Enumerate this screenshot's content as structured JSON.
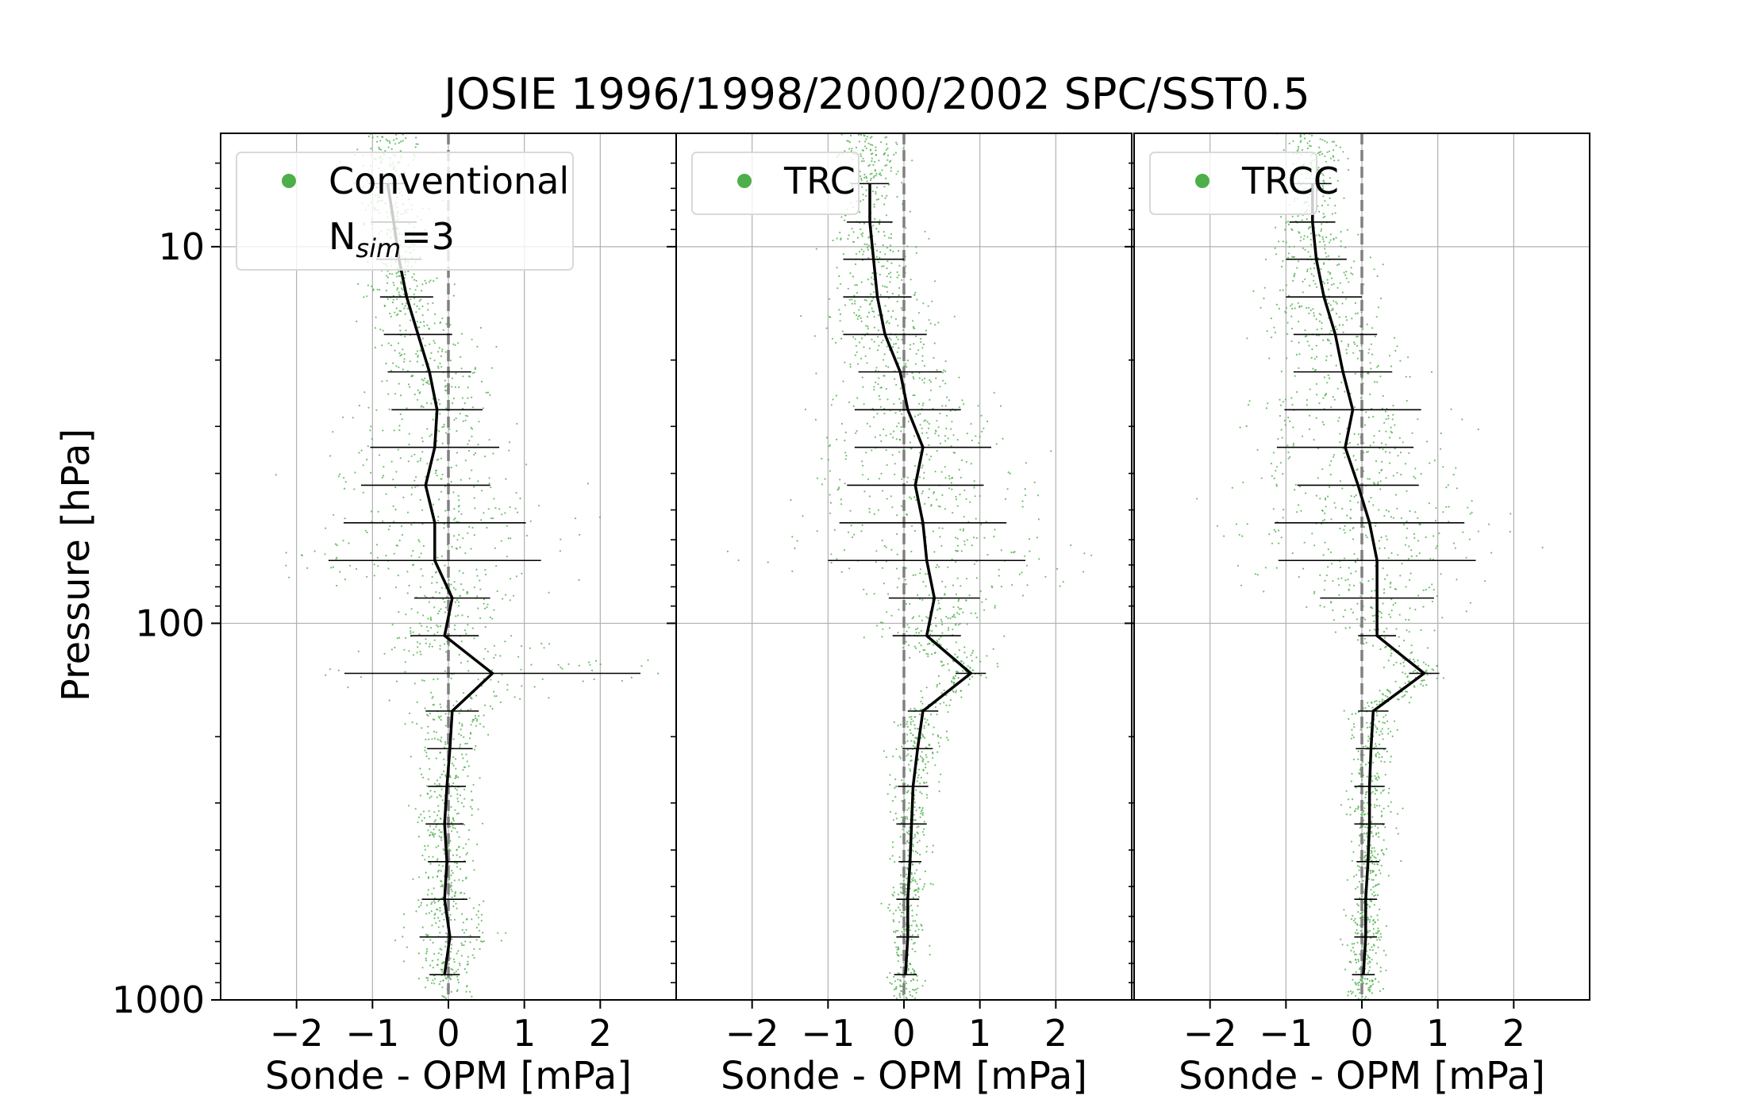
{
  "colors": {
    "scatter": "#4daf4a",
    "mean_line": "#000000",
    "zero_line": "#808080",
    "grid": "#b0b0b0",
    "legend_border": "#d9d9d9"
  },
  "chart_data": {
    "type": "scatter",
    "title": "JOSIE 1996/1998/2000/2002 SPC/SST0.5",
    "ylabel": "Pressure [hPa]",
    "yscale": "log",
    "yaxis_inverted": true,
    "ylim": [
      1000,
      5
    ],
    "y_tick_labels": [
      "10",
      "100",
      "1000"
    ],
    "grid": true,
    "legend_placement": "upper-left",
    "pressure_levels": [
      6.8,
      8.6,
      10.8,
      13.6,
      17.1,
      21.5,
      27.1,
      34.1,
      43,
      54.1,
      68.1,
      85.7,
      107.9,
      135.8,
      171,
      215.2,
      271,
      341.1,
      429.4,
      540.6,
      680.6,
      856.8
    ],
    "panels": [
      {
        "legend": "Conventional",
        "annotation_main": "N",
        "annotation_sub": "sim",
        "annotation_tail": "=3",
        "xlabel": "Sonde - OPM [mPa]",
        "xlim": [
          -3,
          3
        ],
        "x_tick_labels": [
          "−2",
          "−1",
          "0",
          "1",
          "2"
        ],
        "mean": [
          -0.8,
          -0.72,
          -0.65,
          -0.55,
          -0.4,
          -0.25,
          -0.15,
          -0.18,
          -0.3,
          -0.18,
          -0.18,
          0.05,
          -0.05,
          0.58,
          0.05,
          0.02,
          -0.02,
          -0.05,
          -0.02,
          -0.05,
          0.02,
          -0.05
        ],
        "spread": [
          0.25,
          0.3,
          0.3,
          0.35,
          0.45,
          0.55,
          0.6,
          0.85,
          0.85,
          1.2,
          1.4,
          0.5,
          0.45,
          1.95,
          0.35,
          0.3,
          0.25,
          0.25,
          0.25,
          0.3,
          0.4,
          0.2
        ]
      },
      {
        "legend": "TRC",
        "xlabel": "Sonde - OPM [mPa]",
        "xlim": [
          -3,
          3
        ],
        "x_tick_labels": [
          "−2",
          "−1",
          "0",
          "1",
          "2"
        ],
        "mean": [
          -0.45,
          -0.45,
          -0.4,
          -0.35,
          -0.25,
          -0.05,
          0.05,
          0.25,
          0.15,
          0.25,
          0.3,
          0.4,
          0.3,
          0.88,
          0.25,
          0.18,
          0.12,
          0.1,
          0.08,
          0.05,
          0.05,
          0.02
        ],
        "spread": [
          0.25,
          0.3,
          0.4,
          0.45,
          0.55,
          0.55,
          0.7,
          0.9,
          0.9,
          1.1,
          1.3,
          0.6,
          0.45,
          0.2,
          0.2,
          0.2,
          0.2,
          0.2,
          0.15,
          0.15,
          0.15,
          0.15
        ]
      },
      {
        "legend": "TRCC",
        "xlabel": "Sonde - OPM [mPa]",
        "xlim": [
          -3,
          3
        ],
        "x_tick_labels": [
          "−2",
          "−1",
          "0",
          "1",
          "2"
        ],
        "mean": [
          -0.65,
          -0.65,
          -0.6,
          -0.5,
          -0.35,
          -0.25,
          -0.12,
          -0.22,
          -0.05,
          0.1,
          0.2,
          0.2,
          0.2,
          0.82,
          0.15,
          0.12,
          0.1,
          0.1,
          0.08,
          0.05,
          0.05,
          0.02
        ],
        "spread": [
          0.25,
          0.3,
          0.4,
          0.5,
          0.55,
          0.65,
          0.9,
          0.9,
          0.8,
          1.25,
          1.3,
          0.75,
          0.25,
          0.2,
          0.2,
          0.2,
          0.2,
          0.2,
          0.15,
          0.15,
          0.15,
          0.15
        ]
      }
    ]
  }
}
